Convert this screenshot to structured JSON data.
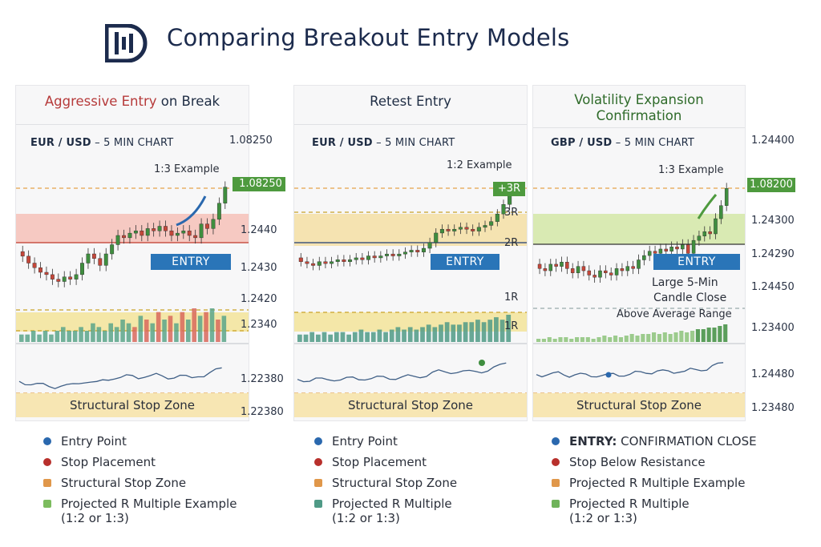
{
  "header": {
    "title": "Comparing Breakout Entry Models",
    "logo_icon": "bar-logo-icon"
  },
  "colors": {
    "red_title": "#b63a3a",
    "navy": "#1f2d44",
    "entry_blue": "#2a75b8",
    "green_tag": "#4e9a3e"
  },
  "panels": [
    {
      "title_parts": [
        "Aggressive Entry",
        " on Break"
      ],
      "pair": "EUR / USD",
      "timeframe": " – 5 MIN CHART",
      "target_label": "1:3 Example",
      "target_price": "1.08250",
      "entry_label": "ENTRY",
      "stop_zone": "Structural Stop Zone",
      "prices": [
        "1.08250",
        "1.2440",
        "1.2430",
        "1.2420",
        "1.2340",
        "1.22380",
        "1.22380"
      ],
      "legend": [
        {
          "label": "Entry Point",
          "color": "#2a68ae",
          "shape": "dot"
        },
        {
          "label": "Stop Placement",
          "color": "#b8302c",
          "shape": "dot"
        },
        {
          "label": "Structural Stop Zone",
          "color": "#e0974a",
          "shape": "square"
        },
        {
          "label": "Projected R Multiple Example",
          "sub": "(1:2 or 1:3)",
          "color": "#7cbc5e",
          "shape": "square"
        }
      ]
    },
    {
      "title": "Retest Entry",
      "pair": "EUR / USD",
      "timeframe": " – 5 MIN CHART",
      "target_label": "1:2 Example",
      "target_tag": "+3R",
      "r_labels": [
        "3R",
        "2R",
        "1R",
        "1R"
      ],
      "entry_label": "ENTRY",
      "stop_zone": "Structural Stop Zone",
      "legend": [
        {
          "label": "Entry Point",
          "color": "#2a68ae",
          "shape": "dot"
        },
        {
          "label": "Stop Placement",
          "color": "#b8302c",
          "shape": "dot"
        },
        {
          "label": "Structural Stop Zone",
          "color": "#e0974a",
          "shape": "square"
        },
        {
          "label": "Projected R Multiple",
          "sub": "(1:2 or 1:3)",
          "color": "#4f9a86",
          "shape": "square"
        }
      ]
    },
    {
      "title_line1": "Volatility Expansion",
      "title_line2": "Confirmation",
      "pair": "GBP / USD",
      "timeframe": " – 5 MIN CHART",
      "target_label": "1:3 Example",
      "target_price": "1.08200",
      "entry_label": "ENTRY",
      "candle_note_1": "Large 5-Min",
      "candle_note_2": "Candle Close",
      "range_note": "Above Average Range",
      "stop_zone": "Structural Stop Zone",
      "prices": [
        "1.24400",
        "1.08200",
        "1.24300",
        "1.24290",
        "1.24450",
        "1.23400",
        "1.24480",
        "1.23480"
      ],
      "legend": [
        {
          "label_bold": "ENTRY:",
          "label": " CONFIRMATION CLOSE",
          "color": "#2a68ae",
          "shape": "dot"
        },
        {
          "label": "Stop Below Resistance",
          "color": "#b8302c",
          "shape": "dot"
        },
        {
          "label": "Projected R Multiple Example",
          "color": "#e0974a",
          "shape": "square"
        },
        {
          "label": "Projected R Multiple",
          "sub": "(1:2 or 1:3)",
          "color": "#6fb35a",
          "shape": "square"
        }
      ]
    }
  ],
  "chart_data": [
    {
      "type": "candlestick",
      "title": "Aggressive Entry on Break",
      "pair": "EUR/USD",
      "timeframe": "5 MIN",
      "closes": [
        1.2432,
        1.2429,
        1.2427,
        1.2425,
        1.2424,
        1.2422,
        1.2421,
        1.2423,
        1.2422,
        1.2424,
        1.2429,
        1.2433,
        1.2431,
        1.2428,
        1.2433,
        1.2437,
        1.2441,
        1.244,
        1.2442,
        1.2443,
        1.2441,
        1.2444,
        1.2443,
        1.2445,
        1.2443,
        1.2441,
        1.2442,
        1.2443,
        1.2441,
        1.244,
        1.2446,
        1.2444,
        1.2448,
        1.2455,
        1.2462
      ],
      "volume": [
        2,
        2,
        3,
        2,
        3,
        2,
        3,
        4,
        3,
        3,
        4,
        3,
        5,
        4,
        3,
        5,
        4,
        6,
        5,
        4,
        7,
        6,
        5,
        8,
        6,
        7,
        5,
        8,
        6,
        9,
        7,
        8,
        9,
        6,
        7
      ],
      "levels": {
        "target": "1:3 Example",
        "entry": "ENTRY"
      }
    },
    {
      "type": "candlestick",
      "title": "Retest Entry",
      "pair": "EUR/USD",
      "timeframe": "5 MIN",
      "closes": [
        1.243,
        1.2429,
        1.2428,
        1.243,
        1.2429,
        1.243,
        1.2431,
        1.243,
        1.2431,
        1.2432,
        1.2431,
        1.2433,
        1.2432,
        1.2433,
        1.2434,
        1.2433,
        1.2434,
        1.2435,
        1.2436,
        1.2435,
        1.2437,
        1.244,
        1.2445,
        1.2447,
        1.2446,
        1.2447,
        1.2448,
        1.2447,
        1.2446,
        1.2448,
        1.2449,
        1.2451,
        1.2455,
        1.246,
        1.2468
      ],
      "volume": [
        3,
        3,
        4,
        3,
        4,
        3,
        4,
        4,
        3,
        4,
        5,
        4,
        4,
        5,
        4,
        5,
        6,
        5,
        6,
        5,
        6,
        7,
        6,
        7,
        8,
        7,
        7,
        8,
        8,
        9,
        8,
        9,
        10,
        9,
        11
      ],
      "r_levels": [
        "+3R",
        "3R",
        "2R",
        "1R",
        "1R"
      ]
    },
    {
      "type": "candlestick",
      "title": "Volatility Expansion Confirmation",
      "pair": "GBP/USD",
      "timeframe": "5 MIN",
      "closes": [
        1.2429,
        1.2428,
        1.2431,
        1.243,
        1.2432,
        1.2429,
        1.2427,
        1.243,
        1.2428,
        1.2426,
        1.2425,
        1.2428,
        1.2427,
        1.2426,
        1.2429,
        1.2428,
        1.243,
        1.2429,
        1.2433,
        1.2435,
        1.2437,
        1.2436,
        1.2438,
        1.2437,
        1.2439,
        1.2438,
        1.244,
        1.2436,
        1.2442,
        1.2444,
        1.2446,
        1.2445,
        1.2452,
        1.2458,
        1.2466
      ],
      "volume": [
        2,
        2,
        3,
        2,
        3,
        3,
        2,
        3,
        3,
        3,
        2,
        3,
        4,
        3,
        4,
        3,
        4,
        5,
        4,
        5,
        5,
        6,
        5,
        6,
        5,
        6,
        7,
        6,
        7,
        8,
        8,
        9,
        9,
        10,
        11
      ],
      "levels": {
        "target": "1:3 Example",
        "entry": "ENTRY"
      }
    }
  ]
}
